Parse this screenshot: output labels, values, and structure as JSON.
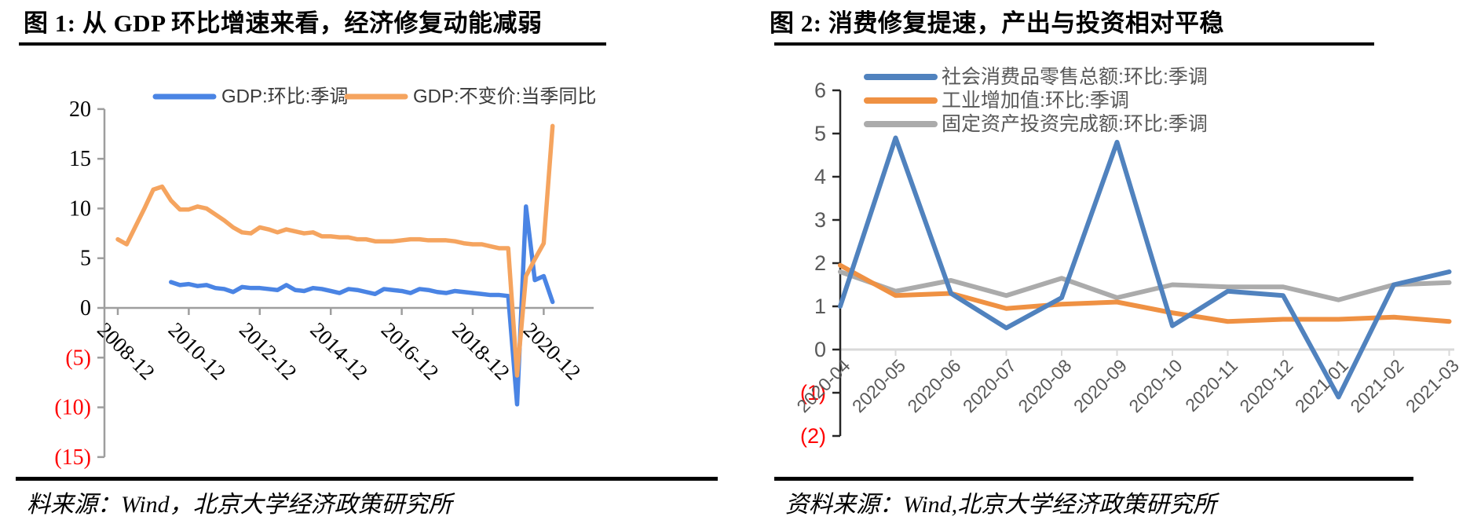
{
  "colors": {
    "negative_red": "#FF0000",
    "rule_black": "#000000",
    "chart1_axis": "#9E9E9E",
    "chart2_axis": "#262626",
    "chart2_label_gray": "#595959",
    "chart2_zero_line": "#D9D9D9"
  },
  "chart_data": [
    {
      "id": "figure1",
      "type": "line",
      "title": "图 1: 从 GDP 环比增速来看，经济修复动能减弱",
      "source": "料来源：Wind，北京大学经济政策研究所",
      "x_start": "2008-12",
      "x_frequency": "quarterly",
      "x_total_points": 50,
      "x_tick_indices": [
        0,
        8,
        16,
        24,
        32,
        40,
        48
      ],
      "x_tick_labels": [
        "2008-12",
        "2010-12",
        "2012-12",
        "2014-12",
        "2016-12",
        "2018-12",
        "2020-12"
      ],
      "ylim": [
        -15,
        20
      ],
      "y_ticks": [
        20,
        15,
        10,
        5,
        0,
        -5,
        -10,
        -15
      ],
      "negative_label_style": "parentheses-red",
      "grid": "off",
      "legend_position": "top",
      "series": [
        {
          "name": "GDP:环比:季调",
          "color": "#4A84E4",
          "start_index": 6,
          "values": [
            2.6,
            2.3,
            2.4,
            2.2,
            2.3,
            2.0,
            1.9,
            1.6,
            2.1,
            2.0,
            2.0,
            1.9,
            1.8,
            2.3,
            1.8,
            1.7,
            2.0,
            1.9,
            1.7,
            1.5,
            1.9,
            1.8,
            1.6,
            1.4,
            1.9,
            1.8,
            1.7,
            1.5,
            1.9,
            1.8,
            1.6,
            1.5,
            1.7,
            1.6,
            1.5,
            1.4,
            1.3,
            1.3,
            1.2,
            -9.7,
            10.2,
            2.8,
            3.2,
            0.6
          ]
        },
        {
          "name": "GDP:不变价:当季同比",
          "color": "#F5A45F",
          "start_index": 0,
          "values": [
            6.9,
            6.4,
            8.2,
            10.0,
            11.9,
            12.2,
            10.8,
            9.9,
            9.9,
            10.2,
            10.0,
            9.4,
            8.8,
            8.1,
            7.6,
            7.5,
            8.1,
            7.9,
            7.6,
            7.9,
            7.7,
            7.5,
            7.6,
            7.2,
            7.2,
            7.1,
            7.1,
            6.9,
            6.9,
            6.7,
            6.7,
            6.7,
            6.8,
            6.9,
            6.9,
            6.8,
            6.8,
            6.8,
            6.7,
            6.5,
            6.4,
            6.4,
            6.2,
            6.0,
            6.0,
            -6.8,
            3.2,
            4.9,
            6.5,
            18.3
          ]
        }
      ]
    },
    {
      "id": "figure2",
      "type": "line",
      "title": "图 2: 消费修复提速，产出与投资相对平稳",
      "source": "资料来源：Wind,北京大学经济政策研究所",
      "categories": [
        "2020-04",
        "2020-05",
        "2020-06",
        "2020-07",
        "2020-08",
        "2020-09",
        "2020-10",
        "2020-11",
        "2020-12",
        "2021-01",
        "2021-02",
        "2021-03"
      ],
      "ylim": [
        -2,
        6
      ],
      "y_ticks": [
        6,
        5,
        4,
        3,
        2,
        1,
        0,
        -1,
        -2
      ],
      "negative_label_style": "parentheses-red",
      "grid": "zero-line-only",
      "legend_position": "top",
      "series": [
        {
          "name": "社会消费品零售总额:环比:季调",
          "color": "#5082BE",
          "values": [
            1.0,
            4.9,
            1.3,
            0.5,
            1.2,
            4.8,
            0.55,
            1.35,
            1.25,
            -1.1,
            1.5,
            1.8
          ]
        },
        {
          "name": "工业增加值:环比:季调",
          "color": "#EF9143",
          "values": [
            1.95,
            1.25,
            1.3,
            0.95,
            1.05,
            1.1,
            0.85,
            0.65,
            0.7,
            0.7,
            0.75,
            0.65
          ]
        },
        {
          "name": "固定资产投资完成额:环比:季调",
          "color": "#ABABAB",
          "values": [
            1.8,
            1.35,
            1.6,
            1.25,
            1.65,
            1.2,
            1.5,
            1.45,
            1.45,
            1.15,
            1.5,
            1.55
          ]
        }
      ]
    }
  ]
}
